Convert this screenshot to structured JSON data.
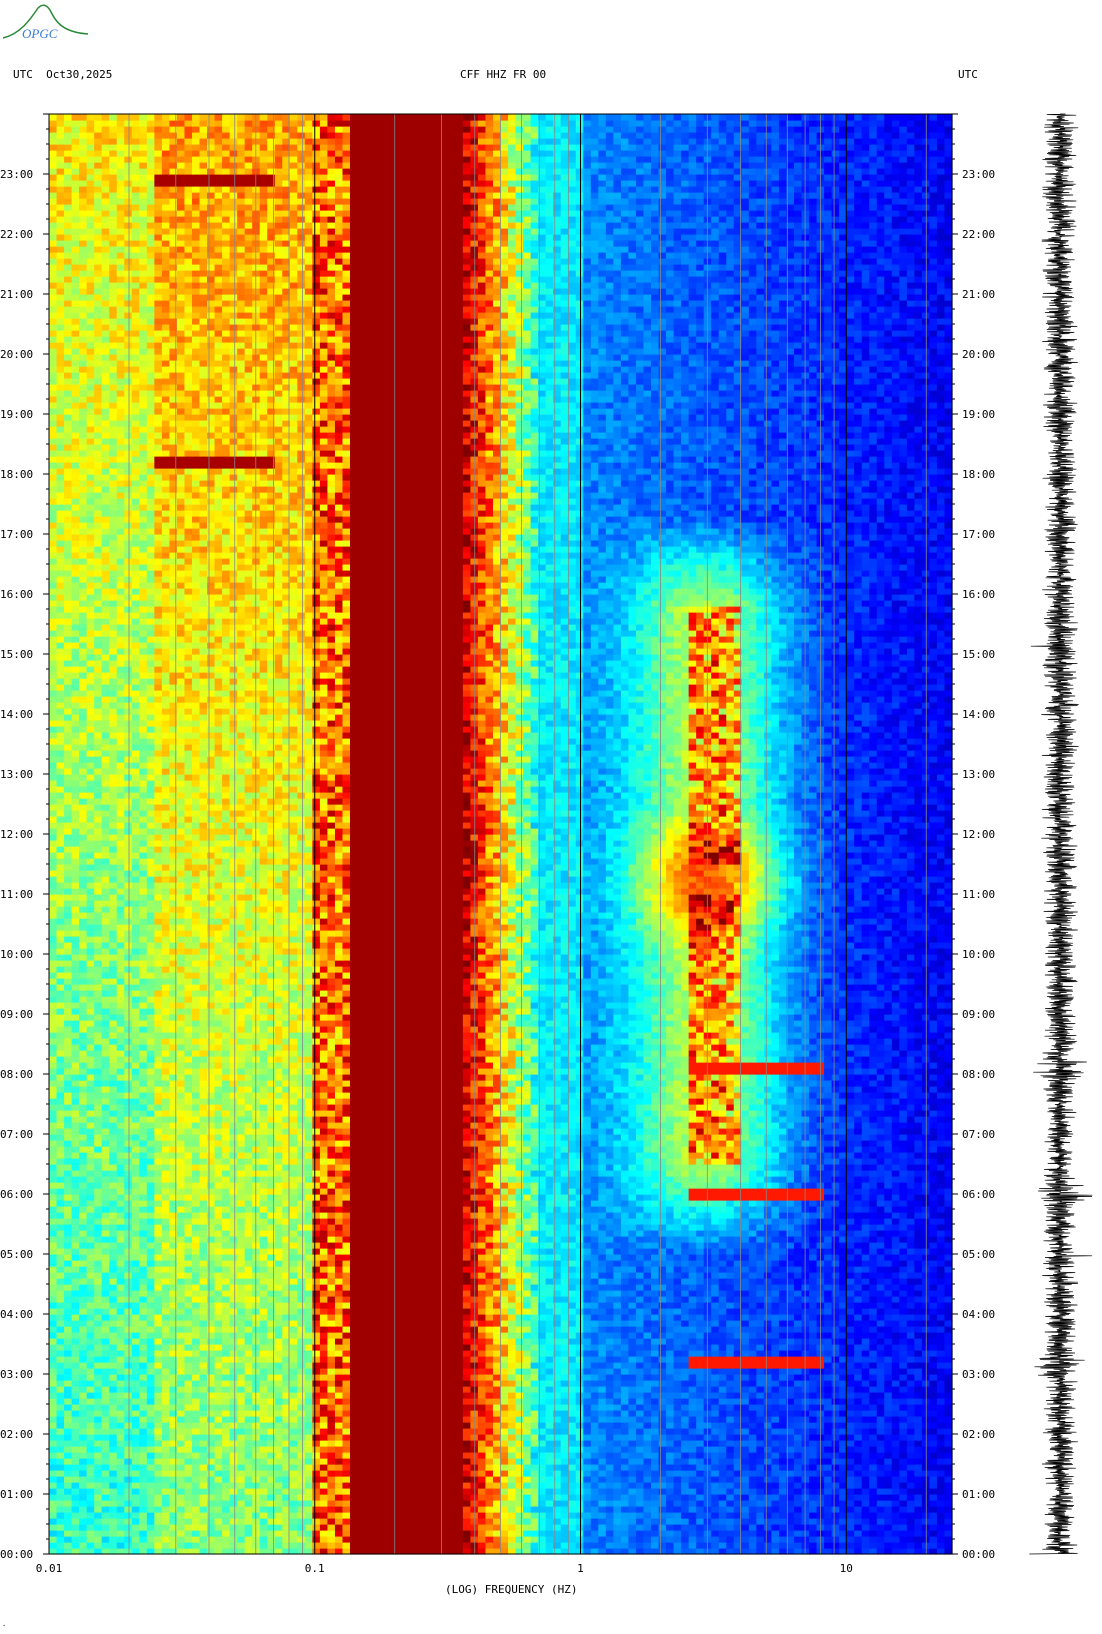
{
  "logo": {
    "text": "OPGC",
    "color": "#2a8a3a"
  },
  "header": {
    "left": "UTC  Oct30,2025",
    "center": "CFF HHZ FR 00",
    "right": "UTC"
  },
  "chart_data": {
    "type": "heatmap",
    "title": "CFF HHZ FR 00",
    "date": "Oct30,2025",
    "xlabel": "(LOG) FREQUENCY (HZ)",
    "ylabel": "UTC",
    "x_scale": "log",
    "xlim": [
      0.01,
      25
    ],
    "x_ticks": [
      {
        "value": 0.01,
        "label": "0.01"
      },
      {
        "value": 0.1,
        "label": "0.1"
      },
      {
        "value": 1,
        "label": "1"
      },
      {
        "value": 10,
        "label": "10"
      }
    ],
    "ylim_hours": [
      0,
      24
    ],
    "y_ticks": [
      {
        "hour": 0,
        "label": "00:00"
      },
      {
        "hour": 1,
        "label": "01:00"
      },
      {
        "hour": 2,
        "label": "02:00"
      },
      {
        "hour": 3,
        "label": "03:00"
      },
      {
        "hour": 4,
        "label": "04:00"
      },
      {
        "hour": 5,
        "label": "05:00"
      },
      {
        "hour": 6,
        "label": "06:00"
      },
      {
        "hour": 7,
        "label": "07:00"
      },
      {
        "hour": 8,
        "label": "08:00"
      },
      {
        "hour": 9,
        "label": "09:00"
      },
      {
        "hour": 10,
        "label": "10:00"
      },
      {
        "hour": 11,
        "label": "11:00"
      },
      {
        "hour": 12,
        "label": "12:00"
      },
      {
        "hour": 13,
        "label": "13:00"
      },
      {
        "hour": 14,
        "label": "14:00"
      },
      {
        "hour": 15,
        "label": "15:00"
      },
      {
        "hour": 16,
        "label": "16:00"
      },
      {
        "hour": 17,
        "label": "17:00"
      },
      {
        "hour": 18,
        "label": "18:00"
      },
      {
        "hour": 19,
        "label": "19:00"
      },
      {
        "hour": 20,
        "label": "20:00"
      },
      {
        "hour": 21,
        "label": "21:00"
      },
      {
        "hour": 22,
        "label": "22:00"
      },
      {
        "hour": 23,
        "label": "23:00"
      }
    ],
    "colormap": [
      "#00007f",
      "#0000ff",
      "#007fff",
      "#00ffff",
      "#7fff7f",
      "#ffff00",
      "#ff7f00",
      "#ff0000",
      "#7f0000"
    ],
    "features": {
      "microseism_band_hz": [
        0.14,
        0.45
      ],
      "cultural_noise_hours": [
        [
          6.5,
          11
        ],
        [
          11.5,
          15.8
        ]
      ],
      "cultural_noise_band_hz": [
        2.5,
        4
      ],
      "events_hours": [
        3.2,
        6.0,
        8.1
      ],
      "strong_low_freq_row_hours": [
        18.2,
        22.9
      ]
    }
  }
}
